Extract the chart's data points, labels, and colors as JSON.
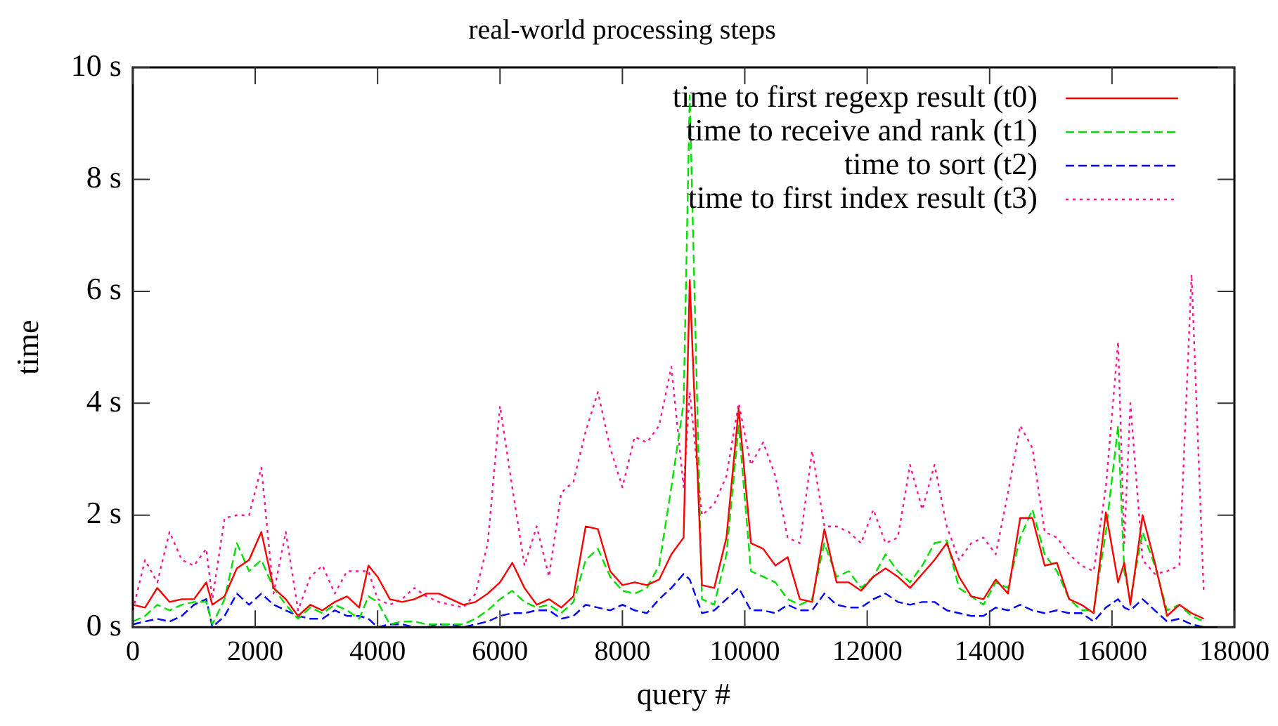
{
  "chart_data": {
    "type": "line",
    "title": "real-world processing steps",
    "xlabel": "query #",
    "ylabel": "time",
    "x": [
      0,
      200,
      400,
      600,
      800,
      1000,
      1200,
      1300,
      1500,
      1700,
      1900,
      2100,
      2300,
      2500,
      2700,
      2900,
      3100,
      3300,
      3500,
      3700,
      3850,
      4000,
      4200,
      4400,
      4600,
      4800,
      5000,
      5200,
      5400,
      5600,
      5800,
      6000,
      6200,
      6400,
      6600,
      6800,
      7000,
      7200,
      7400,
      7600,
      7800,
      8000,
      8200,
      8400,
      8600,
      8800,
      9000,
      9100,
      9300,
      9500,
      9700,
      9900,
      10100,
      10300,
      10500,
      10700,
      10900,
      11100,
      11300,
      11500,
      11700,
      11900,
      12100,
      12300,
      12500,
      12700,
      12900,
      13100,
      13300,
      13500,
      13700,
      13900,
      14100,
      14300,
      14500,
      14700,
      14900,
      15100,
      15300,
      15500,
      15700,
      15900,
      16100,
      16200,
      16300,
      16500,
      16700,
      16900,
      17100,
      17300,
      17500
    ],
    "series": [
      {
        "name": "time to first regexp result (t0)",
        "color": "#ff0000",
        "line_style": "solid",
        "values": [
          0.4,
          0.35,
          0.7,
          0.45,
          0.5,
          0.5,
          0.8,
          0.4,
          0.55,
          1.05,
          1.2,
          1.7,
          0.7,
          0.5,
          0.2,
          0.4,
          0.3,
          0.45,
          0.55,
          0.35,
          1.1,
          0.9,
          0.5,
          0.45,
          0.5,
          0.6,
          0.6,
          0.5,
          0.4,
          0.45,
          0.6,
          0.8,
          1.15,
          0.7,
          0.4,
          0.5,
          0.35,
          0.55,
          1.8,
          1.75,
          1.0,
          0.75,
          0.8,
          0.75,
          0.85,
          1.3,
          1.6,
          6.2,
          0.75,
          0.7,
          1.6,
          3.9,
          1.5,
          1.4,
          1.1,
          1.25,
          0.5,
          0.45,
          1.75,
          0.8,
          0.8,
          0.65,
          0.9,
          1.05,
          0.9,
          0.7,
          0.95,
          1.2,
          1.5,
          0.9,
          0.55,
          0.5,
          0.85,
          0.6,
          1.95,
          1.95,
          1.1,
          1.15,
          0.5,
          0.4,
          0.25,
          2.05,
          0.8,
          1.15,
          0.4,
          2.0,
          1.15,
          0.2,
          0.4,
          0.25,
          0.15
        ]
      },
      {
        "name": "time to receive and rank (t1)",
        "color": "#00e000",
        "line_style": "dashed",
        "values": [
          0.1,
          0.2,
          0.4,
          0.3,
          0.4,
          0.45,
          0.45,
          0.05,
          0.5,
          1.5,
          1.0,
          1.2,
          0.7,
          0.4,
          0.15,
          0.35,
          0.25,
          0.4,
          0.3,
          0.15,
          0.55,
          0.45,
          0.05,
          0.1,
          0.1,
          0.05,
          0.05,
          0.05,
          0.05,
          0.15,
          0.3,
          0.5,
          0.65,
          0.45,
          0.35,
          0.4,
          0.25,
          0.45,
          1.2,
          1.4,
          0.9,
          0.65,
          0.6,
          0.7,
          1.1,
          2.5,
          4.0,
          9.5,
          0.5,
          0.4,
          1.3,
          3.6,
          1.0,
          0.9,
          0.8,
          0.5,
          0.4,
          0.5,
          1.5,
          0.9,
          1.0,
          0.7,
          0.9,
          1.3,
          1.0,
          0.8,
          1.1,
          1.5,
          1.55,
          0.7,
          0.55,
          0.4,
          0.8,
          0.7,
          1.6,
          2.1,
          1.3,
          1.0,
          0.5,
          0.3,
          0.3,
          1.7,
          3.6,
          1.0,
          0.5,
          1.7,
          1.1,
          0.3,
          0.4,
          0.2,
          0.1
        ]
      },
      {
        "name": "time to sort (t2)",
        "color": "#0000ff",
        "line_style": "dashed",
        "values": [
          0.05,
          0.1,
          0.15,
          0.1,
          0.2,
          0.4,
          0.5,
          0.0,
          0.2,
          0.6,
          0.4,
          0.6,
          0.4,
          0.3,
          0.2,
          0.15,
          0.15,
          0.3,
          0.2,
          0.2,
          0.15,
          0.0,
          0.05,
          0.05,
          0.0,
          0.0,
          0.05,
          0.05,
          0.0,
          0.05,
          0.1,
          0.2,
          0.25,
          0.25,
          0.3,
          0.3,
          0.15,
          0.2,
          0.4,
          0.35,
          0.3,
          0.4,
          0.3,
          0.25,
          0.5,
          0.7,
          0.95,
          0.85,
          0.25,
          0.3,
          0.5,
          0.7,
          0.3,
          0.3,
          0.25,
          0.4,
          0.3,
          0.3,
          0.6,
          0.4,
          0.35,
          0.35,
          0.5,
          0.6,
          0.45,
          0.4,
          0.45,
          0.45,
          0.3,
          0.25,
          0.2,
          0.2,
          0.35,
          0.3,
          0.4,
          0.3,
          0.25,
          0.3,
          0.25,
          0.25,
          0.1,
          0.35,
          0.5,
          0.35,
          0.3,
          0.5,
          0.3,
          0.1,
          0.15,
          0.05,
          0.0
        ]
      },
      {
        "name": "time to first index result (t3)",
        "color": "#ff1493",
        "line_style": "dotted",
        "values": [
          0.3,
          1.2,
          0.8,
          1.7,
          1.2,
          1.1,
          1.4,
          0.5,
          1.95,
          2.0,
          2.0,
          2.85,
          0.6,
          1.7,
          0.3,
          0.9,
          1.1,
          0.6,
          1.0,
          1.0,
          1.0,
          0.5,
          0.4,
          0.5,
          0.7,
          0.55,
          0.45,
          0.4,
          0.35,
          0.6,
          1.5,
          3.95,
          2.5,
          1.1,
          1.8,
          0.9,
          2.4,
          2.6,
          3.5,
          4.2,
          3.2,
          2.5,
          3.4,
          3.3,
          3.6,
          4.65,
          2.5,
          4.2,
          2.0,
          2.2,
          2.7,
          4.0,
          2.9,
          3.3,
          2.7,
          1.6,
          1.5,
          3.15,
          1.8,
          1.8,
          1.7,
          1.5,
          2.1,
          1.5,
          1.6,
          2.9,
          2.1,
          2.9,
          1.8,
          1.2,
          1.5,
          1.6,
          1.3,
          2.4,
          3.6,
          3.2,
          1.7,
          1.6,
          1.3,
          1.1,
          1.0,
          2.5,
          5.1,
          1.5,
          4.0,
          1.2,
          0.95,
          1.0,
          1.1,
          6.3,
          0.6
        ]
      }
    ],
    "xlim": [
      0,
      18000
    ],
    "xticks": [
      0,
      2000,
      4000,
      6000,
      8000,
      10000,
      12000,
      14000,
      16000,
      18000
    ],
    "ylim": [
      0,
      10
    ],
    "yticks": [
      {
        "value": 0,
        "label": "0 s"
      },
      {
        "value": 2,
        "label": "2 s"
      },
      {
        "value": 4,
        "label": "4 s"
      },
      {
        "value": 6,
        "label": "6 s"
      },
      {
        "value": 8,
        "label": "8 s"
      },
      {
        "value": 10,
        "label": "10 s"
      }
    ],
    "grid": false,
    "legend": "top right",
    "marker": "none"
  }
}
